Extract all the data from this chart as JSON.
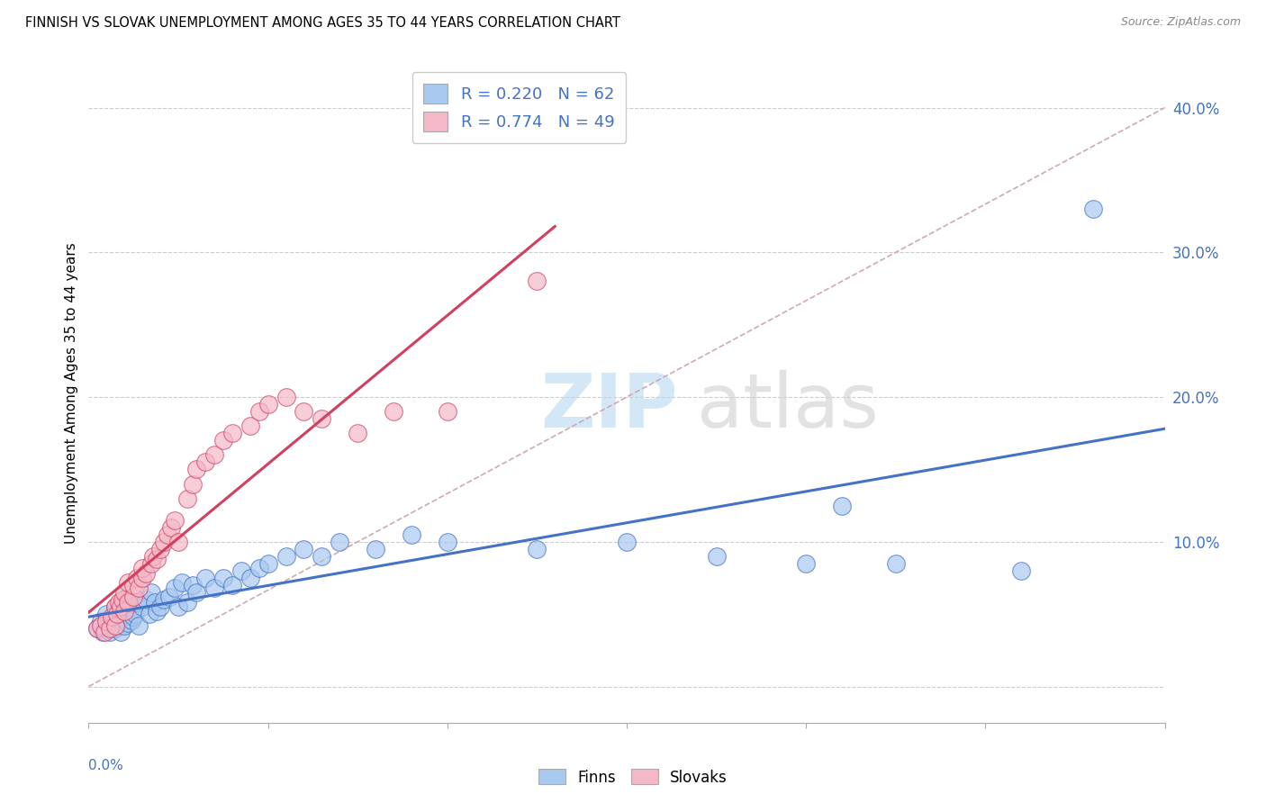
{
  "title": "FINNISH VS SLOVAK UNEMPLOYMENT AMONG AGES 35 TO 44 YEARS CORRELATION CHART",
  "source": "Source: ZipAtlas.com",
  "ylabel": "Unemployment Among Ages 35 to 44 years",
  "xlim": [
    0.0,
    0.6
  ],
  "ylim": [
    -0.025,
    0.43
  ],
  "yticks": [
    0.1,
    0.2,
    0.3,
    0.4
  ],
  "ytick_labels": [
    "10.0%",
    "20.0%",
    "30.0%",
    "40.0%"
  ],
  "legend_R_finns": "0.220",
  "legend_N_finns": "62",
  "legend_R_slovaks": "0.774",
  "legend_N_slovaks": "49",
  "finns_color": "#a8c8f0",
  "slovaks_color": "#f4b8c8",
  "trend_finns_color": "#4472c4",
  "trend_slovaks_color": "#d04060",
  "dashed_line_color": "#d0a8b0",
  "finns_x": [
    0.005,
    0.007,
    0.008,
    0.01,
    0.01,
    0.012,
    0.013,
    0.014,
    0.015,
    0.015,
    0.016,
    0.017,
    0.018,
    0.018,
    0.019,
    0.02,
    0.02,
    0.022,
    0.022,
    0.024,
    0.025,
    0.026,
    0.027,
    0.028,
    0.03,
    0.032,
    0.034,
    0.035,
    0.037,
    0.038,
    0.04,
    0.042,
    0.045,
    0.048,
    0.05,
    0.052,
    0.055,
    0.058,
    0.06,
    0.065,
    0.07,
    0.075,
    0.08,
    0.085,
    0.09,
    0.095,
    0.1,
    0.11,
    0.12,
    0.13,
    0.14,
    0.16,
    0.18,
    0.2,
    0.25,
    0.3,
    0.35,
    0.4,
    0.42,
    0.45,
    0.52,
    0.56
  ],
  "finns_y": [
    0.04,
    0.045,
    0.038,
    0.042,
    0.05,
    0.038,
    0.044,
    0.048,
    0.04,
    0.055,
    0.042,
    0.046,
    0.05,
    0.038,
    0.052,
    0.042,
    0.06,
    0.044,
    0.05,
    0.046,
    0.048,
    0.05,
    0.058,
    0.042,
    0.055,
    0.06,
    0.05,
    0.065,
    0.058,
    0.052,
    0.055,
    0.06,
    0.062,
    0.068,
    0.055,
    0.072,
    0.058,
    0.07,
    0.065,
    0.075,
    0.068,
    0.075,
    0.07,
    0.08,
    0.075,
    0.082,
    0.085,
    0.09,
    0.095,
    0.09,
    0.1,
    0.095,
    0.105,
    0.1,
    0.095,
    0.1,
    0.09,
    0.085,
    0.125,
    0.085,
    0.08,
    0.33
  ],
  "slovaks_x": [
    0.005,
    0.007,
    0.009,
    0.01,
    0.012,
    0.013,
    0.015,
    0.015,
    0.016,
    0.017,
    0.018,
    0.019,
    0.02,
    0.02,
    0.022,
    0.022,
    0.025,
    0.025,
    0.027,
    0.028,
    0.03,
    0.03,
    0.032,
    0.035,
    0.036,
    0.038,
    0.04,
    0.042,
    0.044,
    0.046,
    0.048,
    0.05,
    0.055,
    0.058,
    0.06,
    0.065,
    0.07,
    0.075,
    0.08,
    0.09,
    0.095,
    0.1,
    0.11,
    0.12,
    0.13,
    0.15,
    0.17,
    0.2,
    0.25
  ],
  "slovaks_y": [
    0.04,
    0.042,
    0.038,
    0.045,
    0.04,
    0.048,
    0.042,
    0.055,
    0.05,
    0.058,
    0.055,
    0.06,
    0.052,
    0.065,
    0.058,
    0.072,
    0.062,
    0.07,
    0.075,
    0.068,
    0.075,
    0.082,
    0.078,
    0.085,
    0.09,
    0.088,
    0.095,
    0.1,
    0.105,
    0.11,
    0.115,
    0.1,
    0.13,
    0.14,
    0.15,
    0.155,
    0.16,
    0.17,
    0.175,
    0.18,
    0.19,
    0.195,
    0.2,
    0.19,
    0.185,
    0.175,
    0.19,
    0.19,
    0.28
  ]
}
